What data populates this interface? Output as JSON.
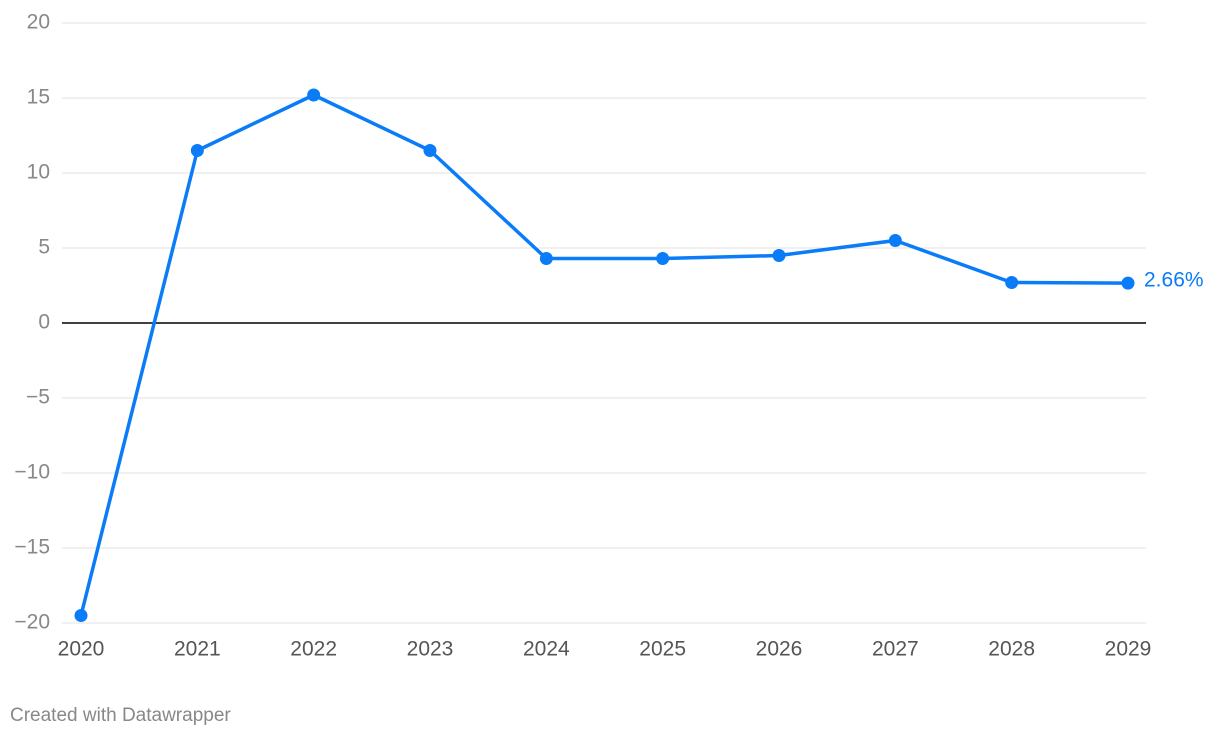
{
  "chart_data": {
    "type": "line",
    "x": [
      2020,
      2021,
      2022,
      2023,
      2024,
      2025,
      2026,
      2027,
      2028,
      2029
    ],
    "xlim": [
      2020,
      2029
    ],
    "xticks": [
      2020,
      2021,
      2022,
      2023,
      2024,
      2025,
      2026,
      2027,
      2028,
      2029
    ],
    "series": [
      {
        "color": "#0a7cf7",
        "values": [
          -19.5,
          11.5,
          15.2,
          11.5,
          4.3,
          4.3,
          4.5,
          5.5,
          2.7,
          2.66
        ],
        "value_labels": [
          null,
          null,
          null,
          null,
          null,
          null,
          null,
          null,
          null,
          "2.66%"
        ]
      }
    ],
    "ylim": [
      -20,
      20
    ],
    "yticks": [
      {
        "value": -20,
        "label": "−20"
      },
      {
        "value": -15,
        "label": "−15"
      },
      {
        "value": -10,
        "label": "−10"
      },
      {
        "value": -5,
        "label": "−5"
      },
      0,
      5,
      10,
      15,
      20
    ],
    "grid": true,
    "credit": "Created with Datawrapper"
  }
}
